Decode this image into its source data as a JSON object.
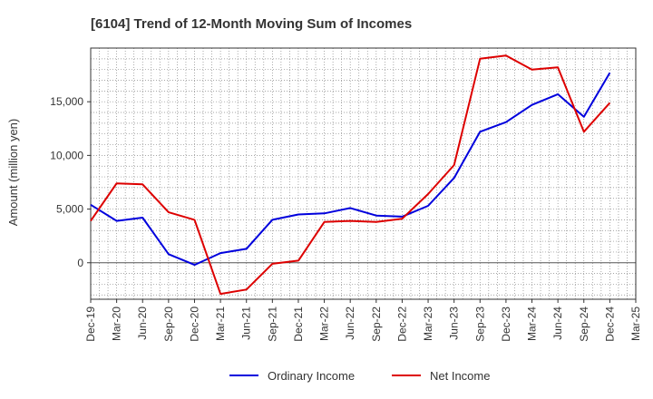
{
  "chart_data": {
    "type": "line",
    "title": "[6104]  Trend of 12-Month Moving Sum of Incomes",
    "xlabel": "",
    "ylabel": "Amount (million yen)",
    "categories": [
      "Dec-19",
      "Mar-20",
      "Jun-20",
      "Sep-20",
      "Dec-20",
      "Mar-21",
      "Jun-21",
      "Sep-21",
      "Dec-21",
      "Mar-22",
      "Jun-22",
      "Sep-22",
      "Dec-22",
      "Mar-23",
      "Jun-23",
      "Sep-23",
      "Dec-23",
      "Mar-24",
      "Jun-24",
      "Sep-24",
      "Dec-24",
      "Mar-25"
    ],
    "ylim": [
      -3400,
      20000
    ],
    "yticks": [
      0,
      5000,
      10000,
      15000
    ],
    "ytick_labels": [
      "0",
      "5,000",
      "10,000",
      "15,000"
    ],
    "grid": true,
    "legend_position": "bottom",
    "series": [
      {
        "name": "Ordinary Income",
        "color": "#0000dd",
        "values": [
          5400,
          3900,
          4200,
          800,
          -200,
          900,
          1300,
          4000,
          4500,
          4600,
          5100,
          4400,
          4300,
          5300,
          7900,
          12200,
          13100,
          14700,
          15700,
          13600,
          17700,
          null
        ]
      },
      {
        "name": "Net Income",
        "color": "#dd0000",
        "values": [
          3900,
          7400,
          7300,
          4700,
          4000,
          -2900,
          -2500,
          -100,
          200,
          3800,
          3900,
          3800,
          4100,
          6400,
          9100,
          19000,
          19300,
          18000,
          18200,
          12200,
          14900,
          null
        ]
      }
    ]
  }
}
